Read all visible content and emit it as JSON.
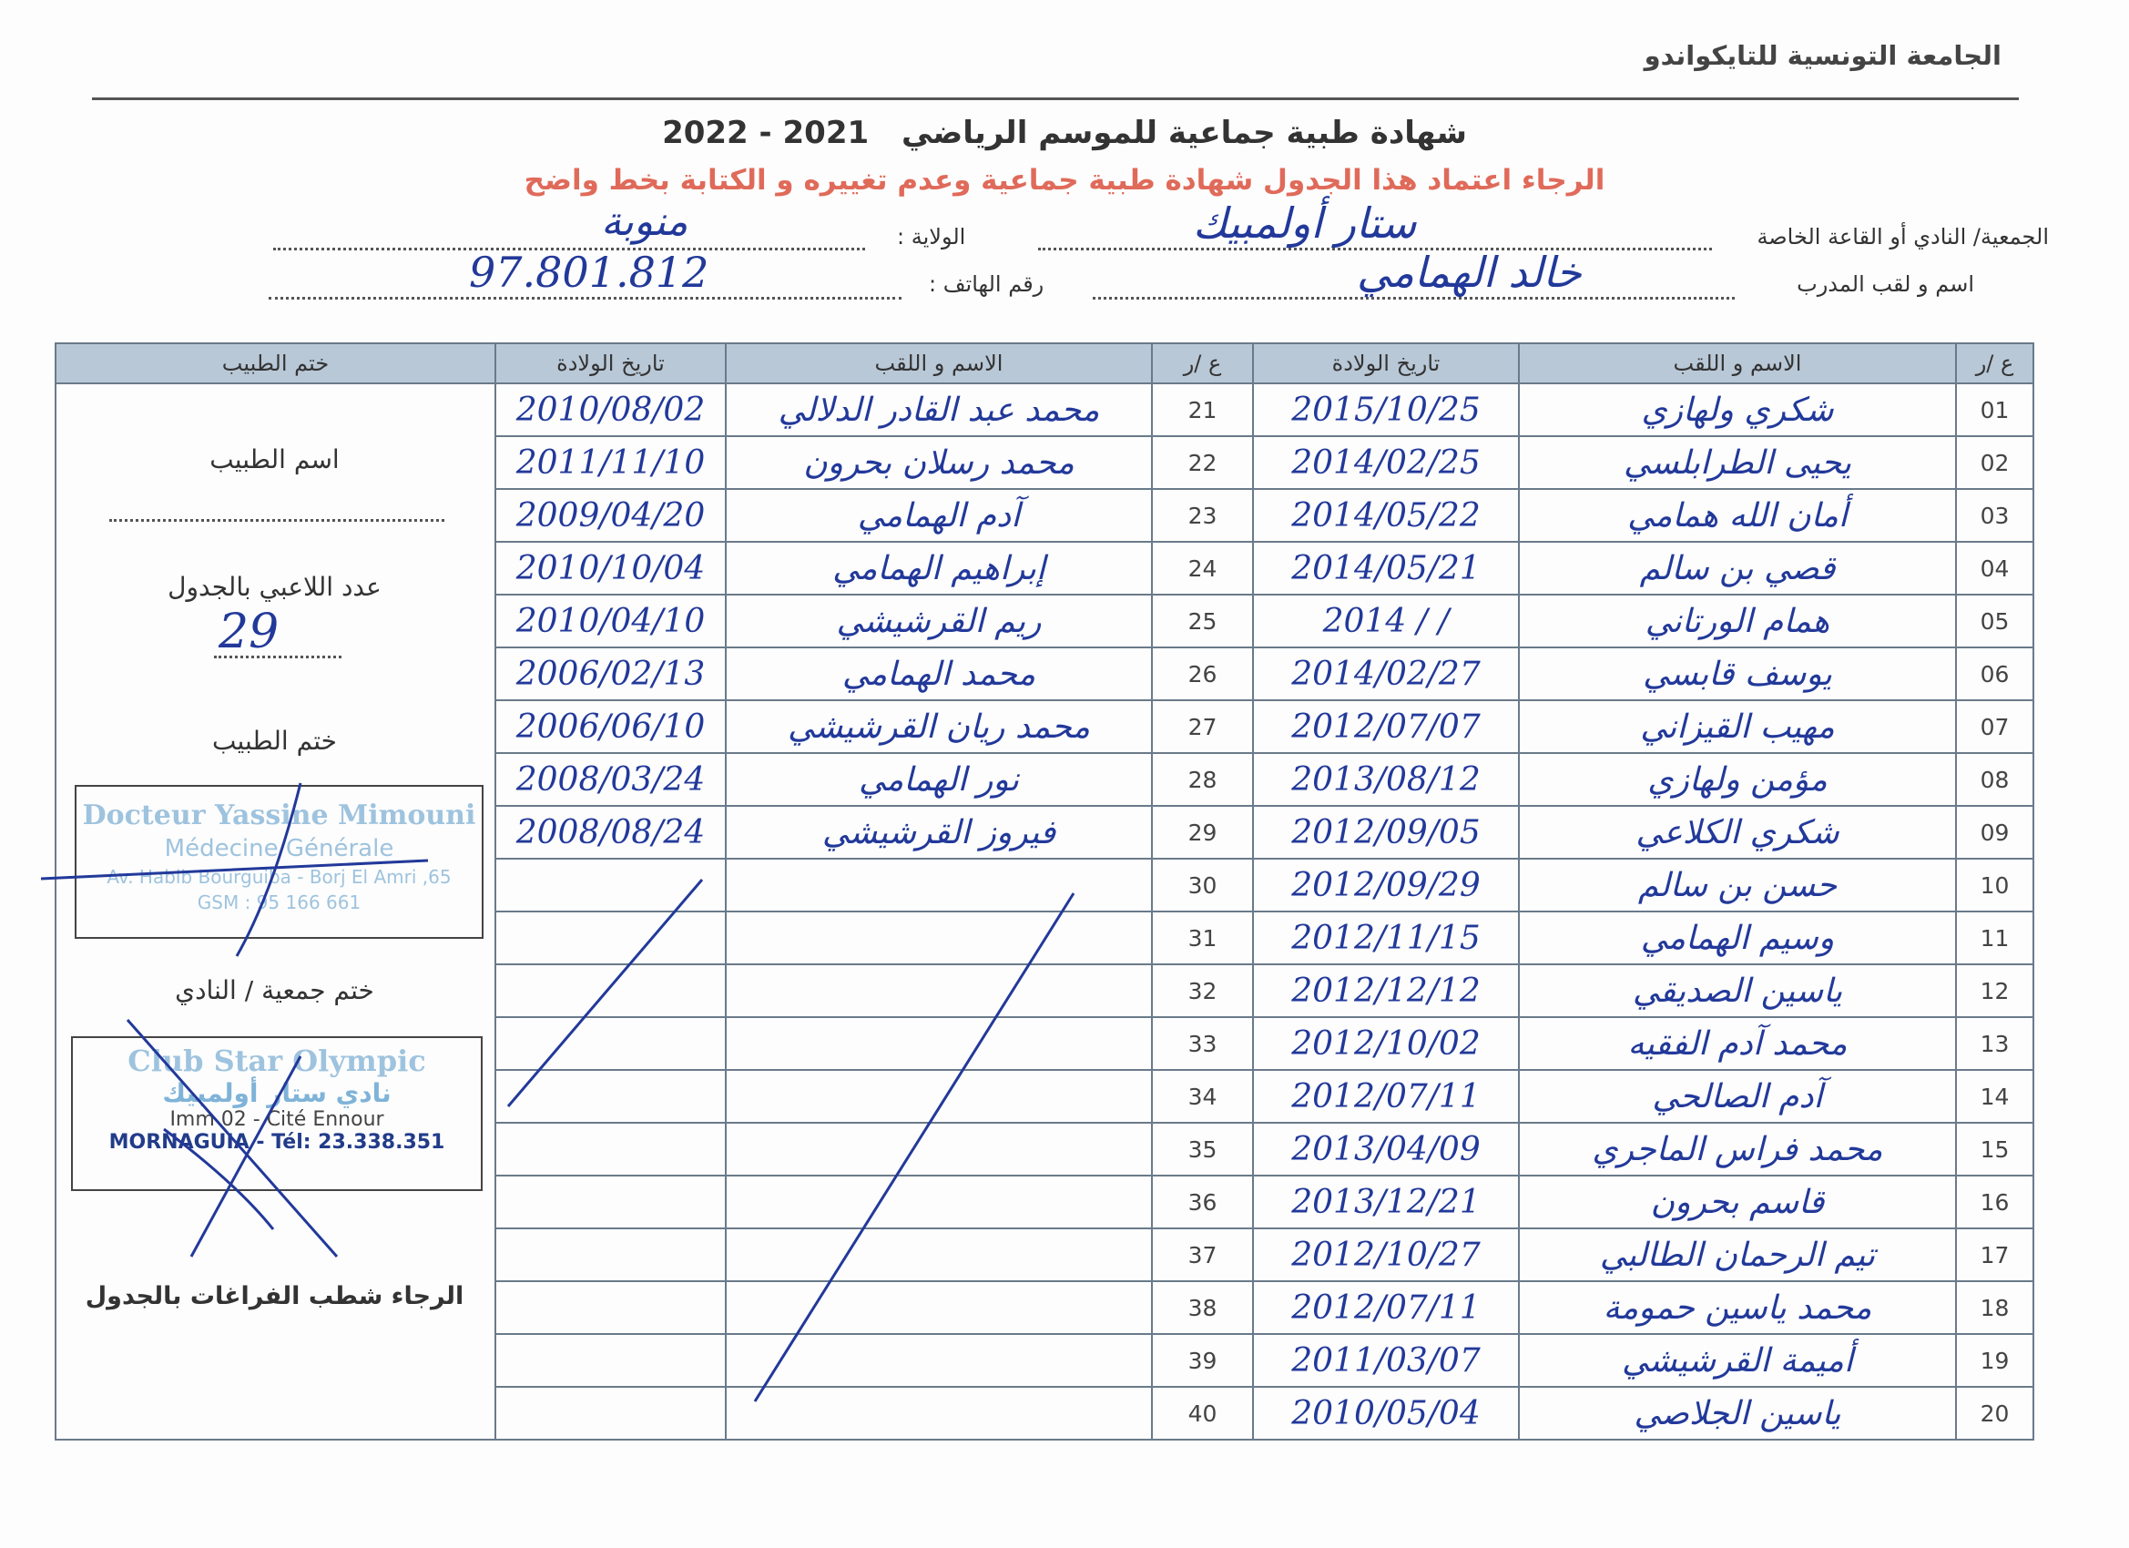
{
  "header": {
    "organization": "الجامعة التونسية للتايكواندو",
    "title": "شهادة طبية جماعية  للموسم الرياضي",
    "season": "2021 - 2022",
    "instruction": "الرجاء اعتماد هذا الجدول شهادة طبية جماعية وعدم تغييره و الكتابة بخط واضح"
  },
  "fields": {
    "club_label": "الجمعية/ النادي أو القاعة الخاصة",
    "club_value": "ستار أولمبيك",
    "state_label": "الولاية :",
    "state_value": "منوبة",
    "coach_label": "اسم و لقب المدرب",
    "coach_value": "خالد الهمامي",
    "phone_label": "رقم الهاتف :",
    "phone_value": "97.801.812"
  },
  "table": {
    "headers": [
      "ع /ر",
      "الاسم و اللقب",
      "تاريخ الولادة",
      "ع /ر",
      "الاسم و اللقب",
      "تاريخ الولادة",
      "ختم الطبيب"
    ],
    "rows": [
      [
        "01",
        "شكري ولهازي",
        "2015/10/25",
        "21",
        "محمد عبد القادر الدلالي",
        "2010/08/02"
      ],
      [
        "02",
        "يحيى الطرابلسي",
        "2014/02/25",
        "22",
        "محمد رسلان بحرون",
        "2011/11/10"
      ],
      [
        "03",
        "أمان الله همامي",
        "2014/05/22",
        "23",
        "آدم الهمامي",
        "2009/04/20"
      ],
      [
        "04",
        "قصي بن سالم",
        "2014/05/21",
        "24",
        "إبراهيم الهمامي",
        "2010/10/04"
      ],
      [
        "05",
        "همام الورتاني",
        "2014 / /",
        "25",
        "ريم القرشيشي",
        "2010/04/10"
      ],
      [
        "06",
        "يوسف قابسي",
        "2014/02/27",
        "26",
        "محمد الهمامي",
        "2006/02/13"
      ],
      [
        "07",
        "مهيب القيزاني",
        "2012/07/07",
        "27",
        "محمد ريان القرشيشي",
        "2006/06/10"
      ],
      [
        "08",
        "مؤمن ولهازي",
        "2013/08/12",
        "28",
        "نور الهمامي",
        "2008/03/24"
      ],
      [
        "09",
        "شكري الكلاعي",
        "2012/09/05",
        "29",
        "فيروز القرشيشي",
        "2008/08/24"
      ],
      [
        "10",
        "حسن بن سالم",
        "2012/09/29",
        "30",
        null,
        null
      ],
      [
        "11",
        "وسيم الهمامي",
        "2012/11/15",
        "31",
        null,
        null
      ],
      [
        "12",
        "ياسين الصديقي",
        "2012/12/12",
        "32",
        null,
        null
      ],
      [
        "13",
        "محمد آدم الفقيه",
        "2012/10/02",
        "33",
        null,
        null
      ],
      [
        "14",
        "آدم الصالحي",
        "2012/07/11",
        "34",
        null,
        null
      ],
      [
        "15",
        "محمد فراس الماجري",
        "2013/04/09",
        "35",
        null,
        null
      ],
      [
        "16",
        "قاسم بحرون",
        "2013/12/21",
        "36",
        null,
        null
      ],
      [
        "17",
        "تيم الرحمان الطالبي",
        "2012/10/27",
        "37",
        null,
        null
      ],
      [
        "18",
        "محمد ياسين حمومة",
        "2012/07/11",
        "38",
        null,
        null
      ],
      [
        "19",
        "أميمة القرشيشي",
        "2011/03/07",
        "39",
        null,
        null
      ],
      [
        "20",
        "ياسين الجلاصي",
        "2010/05/04",
        "40",
        null,
        null
      ]
    ]
  },
  "side_panel": {
    "doctor_name_label": "اسم الطبيب",
    "players_count_label": "عدد اللاعبي بالجدول",
    "players_count": "29",
    "doctor_stamp_label": "ختم الطبيب",
    "doctor_stamp": [
      "Docteur Yassine Mimouni",
      "Médecine Générale",
      "65, Av. Habib Bourguiba - Borj El Amri",
      "GSM : 95 166 661"
    ],
    "club_stamp_label": "ختم جمعية / النادي",
    "club_stamp": [
      "Club Star Olympic",
      "نادي ستار أولمبيك",
      "Imm 02 - Cité Ennour",
      "MORNAGUIA - Tél: 23.338.351"
    ],
    "note": "الرجاء شطب الفراغات بالجدول"
  }
}
